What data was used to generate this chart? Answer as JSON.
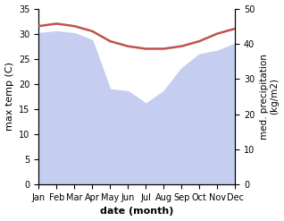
{
  "months": [
    "Jan",
    "Feb",
    "Mar",
    "Apr",
    "May",
    "Jun",
    "Jul",
    "Aug",
    "Sep",
    "Oct",
    "Nov",
    "Dec"
  ],
  "month_x": [
    0,
    1,
    2,
    3,
    4,
    5,
    6,
    7,
    8,
    9,
    10,
    11
  ],
  "temperature": [
    31.5,
    32.0,
    31.5,
    30.5,
    28.5,
    27.5,
    27.0,
    27.0,
    27.5,
    28.5,
    30.0,
    31.0
  ],
  "precipitation": [
    43.0,
    43.5,
    43.0,
    41.0,
    27.0,
    26.5,
    23.0,
    26.5,
    33.0,
    37.0,
    38.0,
    40.0
  ],
  "temp_color": "#c0504d",
  "precip_fill_color": "#c5cef0",
  "xlabel": "date (month)",
  "ylabel_left": "max temp (C)",
  "ylabel_right": "med. precipitation\n(kg/m2)",
  "ylim_left": [
    0,
    35
  ],
  "ylim_right": [
    0,
    50
  ],
  "yticks_left": [
    0,
    5,
    10,
    15,
    20,
    25,
    30,
    35
  ],
  "yticks_right": [
    0,
    10,
    20,
    30,
    40,
    50
  ],
  "temp_linewidth": 1.8,
  "background_color": "#ffffff"
}
